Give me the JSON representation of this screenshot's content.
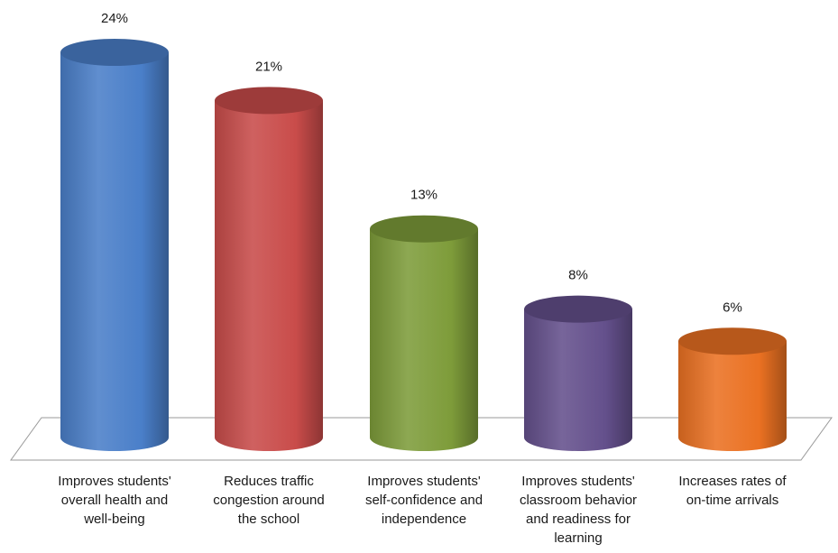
{
  "chart_data": {
    "type": "bar",
    "style": "3d-cylinder",
    "categories": [
      [
        "Improves students'",
        "overall health and",
        "well-being"
      ],
      [
        "Reduces traffic",
        "congestion around",
        "the school"
      ],
      [
        "Improves students'",
        "self-confidence and",
        "independence"
      ],
      [
        "Improves students'",
        "classroom behavior",
        "and readiness for",
        "learning"
      ],
      [
        "Increases rates of",
        "on-time arrivals"
      ]
    ],
    "values": [
      24,
      21,
      13,
      8,
      6
    ],
    "value_labels": [
      "24%",
      "21%",
      "13%",
      "8%",
      "6%"
    ],
    "ylim": [
      0,
      24
    ],
    "legend": "none",
    "grid": false,
    "colors": [
      "#4a7fc9",
      "#c94c4a",
      "#7e9c3a",
      "#64508c",
      "#ea7122"
    ]
  }
}
